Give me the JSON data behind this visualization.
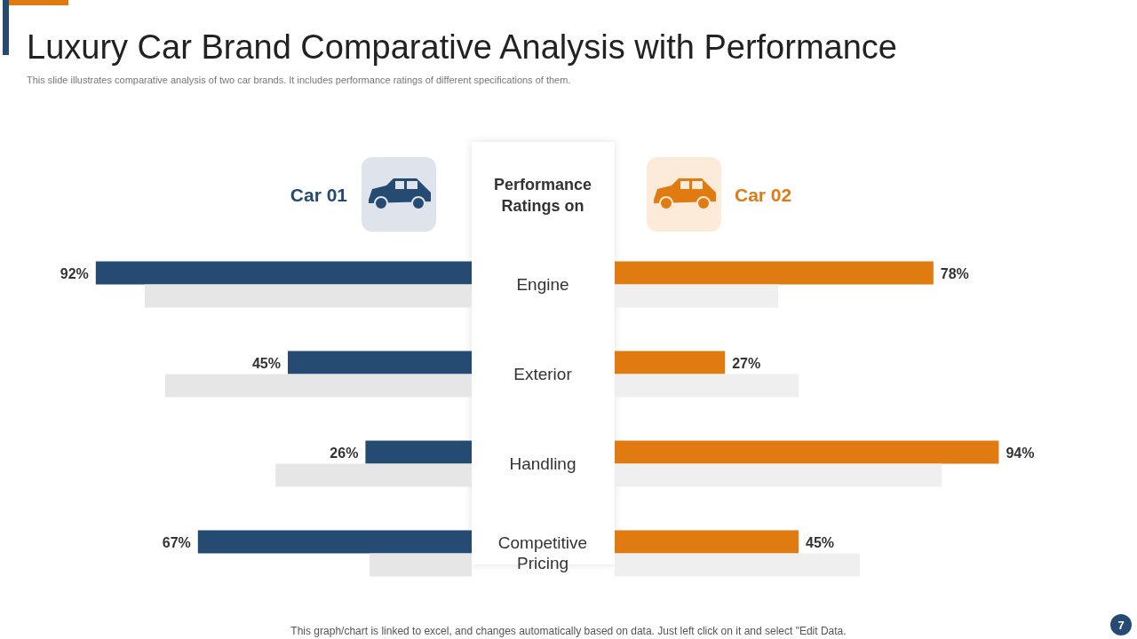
{
  "chart_data": [
    {
      "type": "bar",
      "orientation": "horizontal",
      "title": "Luxury Car Brand Comparative Analysis with Performance",
      "subtitle": "This slide illustrates comparative analysis of two car brands. It includes performance ratings of different specifications of them.",
      "ylabel": "Performance Ratings on",
      "categories": [
        "Engine",
        "Exterior",
        "Handling",
        "Competitive Pricing"
      ],
      "tick_labels": "y",
      "legend": "top",
      "annotations": [
        "This graph/chart is linked to excel,  and changes automatically based on data. Just left click on it and select \"Edit Data.",
        "7"
      ],
      "series": [
        {
          "name": "Car 01",
          "color": "#264b73",
          "values": [
            92,
            45,
            26,
            67
          ],
          "value_labels": [
            "92%",
            "45%",
            "26%",
            "67%"
          ]
        },
        {
          "color": "#e6e6e6",
          "values": [
            80,
            75,
            48,
            25
          ]
        }
      ]
    },
    {
      "type": "bar",
      "orientation": "horizontal",
      "categories": [
        null,
        null,
        null,
        null
      ],
      "legend": "top",
      "series": [
        {
          "name": "Car 02",
          "color": "#e07b12",
          "values": [
            78,
            27,
            94,
            45
          ],
          "value_labels": [
            "78%",
            "27%",
            "94%",
            "45%"
          ]
        },
        {
          "color": "#efefef",
          "values": [
            40,
            45,
            80,
            60
          ]
        }
      ]
    }
  ]
}
